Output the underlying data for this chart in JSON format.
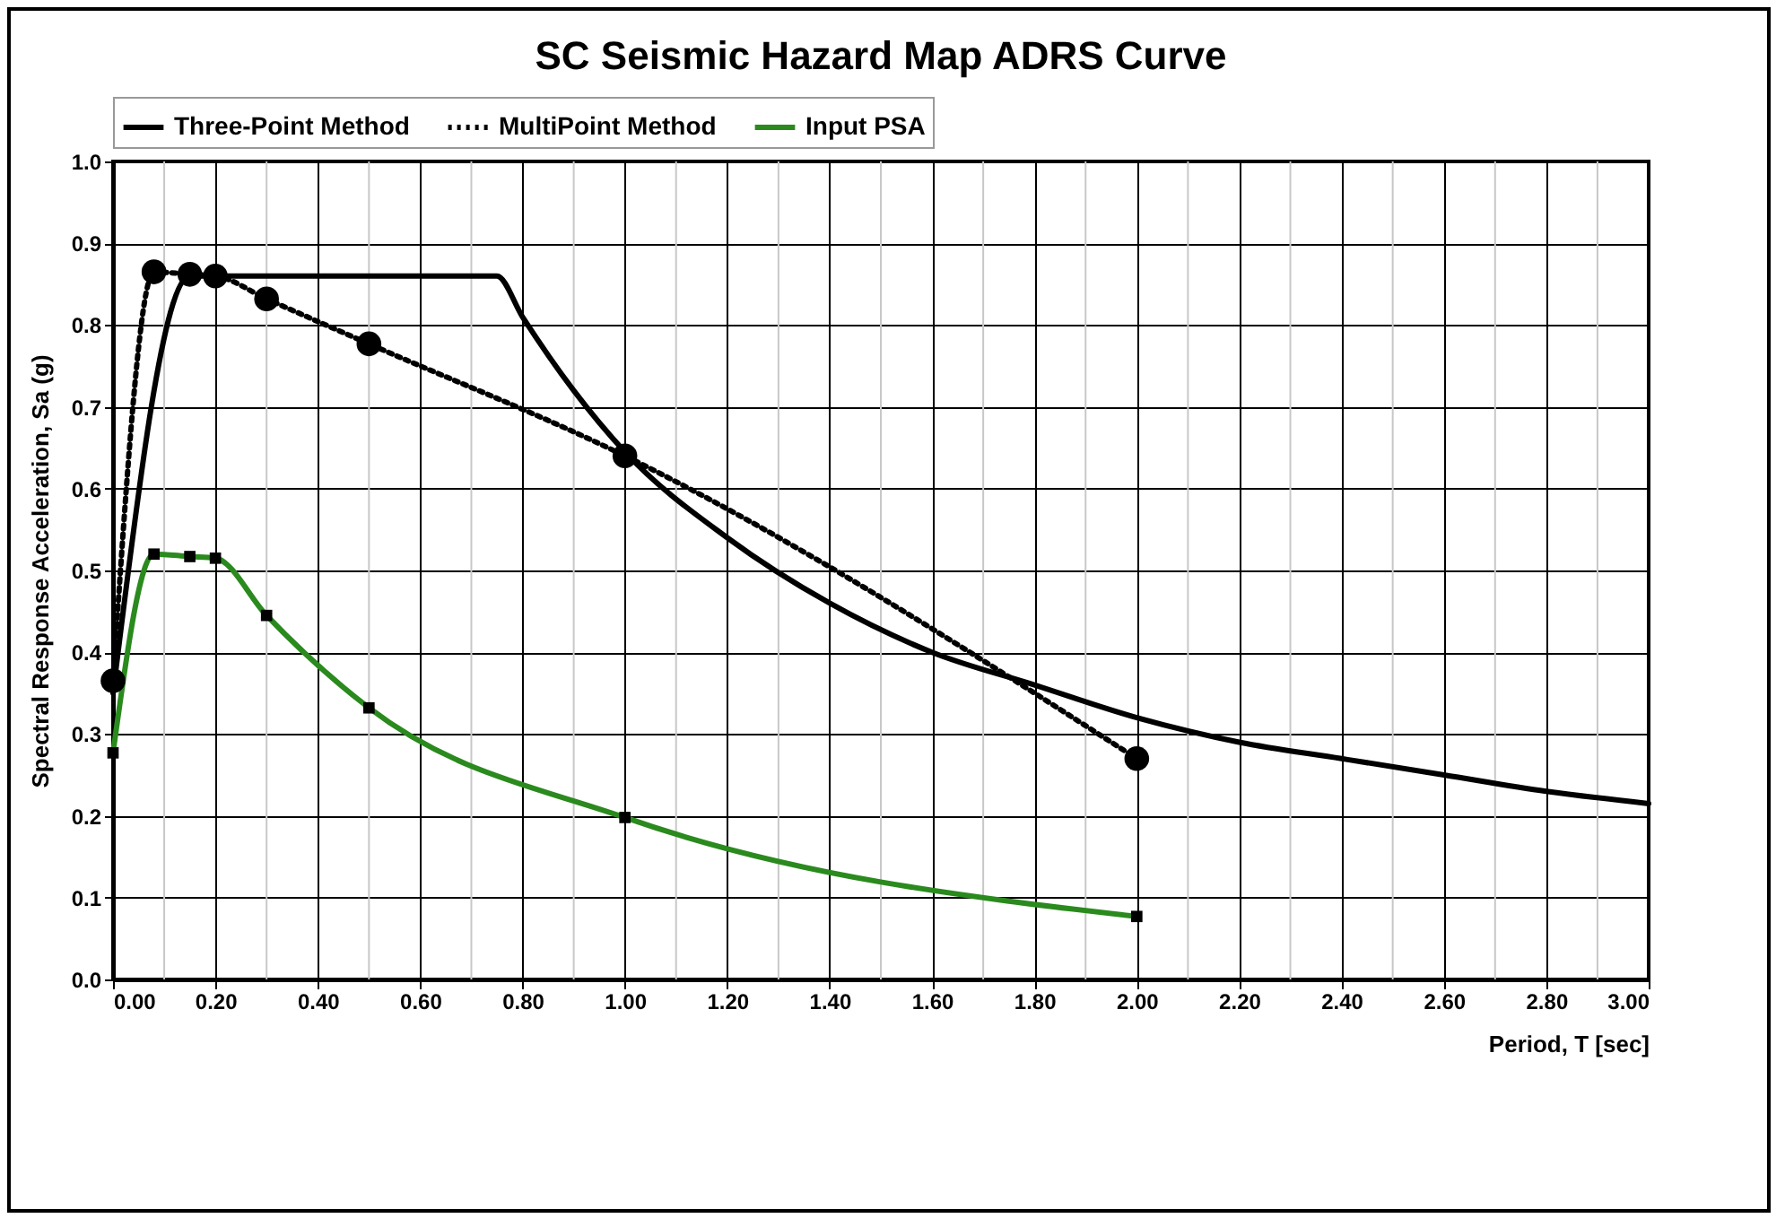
{
  "chart_data": {
    "type": "line",
    "title": "SC Seismic Hazard Map ADRS Curve",
    "xlabel": "Period, T [sec]",
    "ylabel": "Spectral Response Acceleration, Sa (g)",
    "series": [
      {
        "name": "Three-Point Method",
        "color": "#000000",
        "line_style": "solid",
        "marker": "none",
        "x": [
          0,
          0.15,
          0.75,
          0.8,
          0.9,
          1.0,
          1.2,
          1.4,
          1.6,
          1.8,
          2.0,
          2.2,
          2.4,
          2.6,
          2.8,
          3.0
        ],
        "values": [
          0.35,
          0.86,
          0.86,
          0.81,
          0.72,
          0.645,
          0.54,
          0.46,
          0.4,
          0.36,
          0.32,
          0.29,
          0.27,
          0.25,
          0.23,
          0.215
        ]
      },
      {
        "name": "MultiPoint Method",
        "color": "#000000",
        "line_style": "dotted",
        "marker": "circle",
        "x": [
          0,
          0.08,
          0.15,
          0.2,
          0.3,
          0.5,
          1.0,
          2.0
        ],
        "values": [
          0.365,
          0.865,
          0.862,
          0.86,
          0.832,
          0.777,
          0.64,
          0.27
        ]
      },
      {
        "name": "Input PSA",
        "color": "#2a8a1e",
        "line_style": "solid",
        "marker": "square",
        "x": [
          0,
          0.08,
          0.15,
          0.2,
          0.3,
          0.5,
          1.0,
          2.0
        ],
        "values": [
          0.277,
          0.52,
          0.517,
          0.515,
          0.445,
          0.332,
          0.198,
          0.077
        ]
      }
    ],
    "xlim": [
      0,
      3
    ],
    "ylim": [
      0,
      1
    ],
    "xticks": [
      {
        "value": 0,
        "label": "0.00"
      },
      {
        "value": 0.2,
        "label": "0.20"
      },
      {
        "value": 0.4,
        "label": "0.40"
      },
      {
        "value": 0.6,
        "label": "0.60"
      },
      {
        "value": 0.8,
        "label": "0.80"
      },
      {
        "value": 1,
        "label": "1.00"
      },
      {
        "value": 1.2,
        "label": "1.20"
      },
      {
        "value": 1.4,
        "label": "1.40"
      },
      {
        "value": 1.6,
        "label": "1.60"
      },
      {
        "value": 1.8,
        "label": "1.80"
      },
      {
        "value": 2,
        "label": "2.00"
      },
      {
        "value": 2.2,
        "label": "2.20"
      },
      {
        "value": 2.4,
        "label": "2.40"
      },
      {
        "value": 2.6,
        "label": "2.60"
      },
      {
        "value": 2.8,
        "label": "2.80"
      },
      {
        "value": 3,
        "label": "3.00"
      }
    ],
    "yticks": [
      {
        "value": 0,
        "label": "0.0"
      },
      {
        "value": 0.1,
        "label": "0.1"
      },
      {
        "value": 0.2,
        "label": "0.2"
      },
      {
        "value": 0.3,
        "label": "0.3"
      },
      {
        "value": 0.4,
        "label": "0.4"
      },
      {
        "value": 0.5,
        "label": "0.5"
      },
      {
        "value": 0.6,
        "label": "0.6"
      },
      {
        "value": 0.7,
        "label": "0.7"
      },
      {
        "value": 0.8,
        "label": "0.8"
      },
      {
        "value": 0.9,
        "label": "0.9"
      },
      {
        "value": 1,
        "label": "1.0"
      }
    ],
    "grid": true,
    "legend": "top"
  }
}
